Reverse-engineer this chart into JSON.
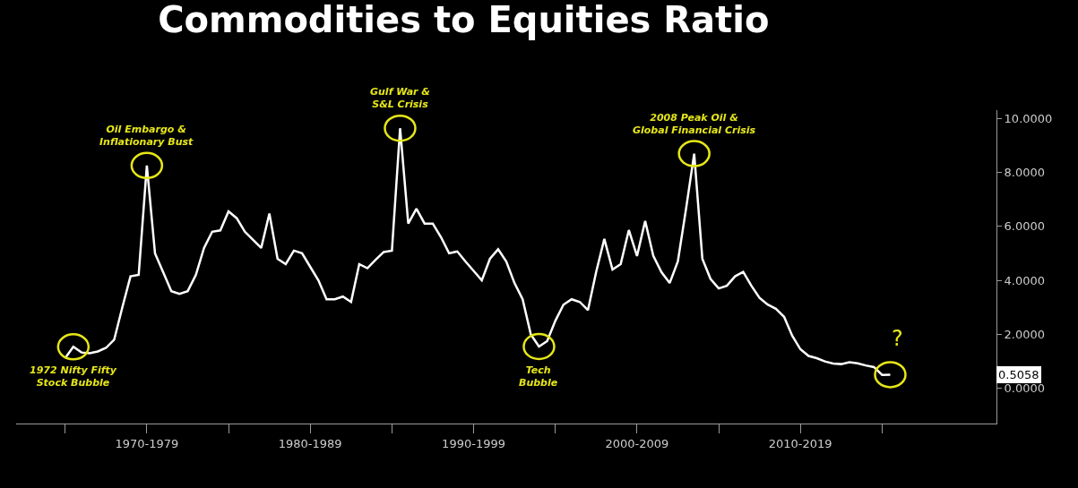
{
  "chart_data": {
    "type": "line",
    "title": "Commodities to Equities Ratio",
    "categories": [
      null,
      null,
      null,
      null,
      null,
      null,
      null,
      null,
      null,
      null,
      "1970-1979",
      null,
      null,
      null,
      null,
      null,
      null,
      null,
      null,
      null,
      null,
      null,
      null,
      null,
      null,
      null,
      null,
      null,
      null,
      null,
      "1980-1989",
      null,
      null,
      null,
      null,
      null,
      null,
      null,
      null,
      null,
      null,
      null,
      null,
      null,
      null,
      null,
      null,
      null,
      null,
      null,
      "1990-1999",
      null,
      null,
      null,
      null,
      null,
      null,
      null,
      null,
      null,
      null,
      null,
      null,
      null,
      null,
      null,
      null,
      null,
      null,
      null,
      "2000-2009",
      null,
      null,
      null,
      null,
      null,
      null,
      null,
      null,
      null,
      null,
      null,
      null,
      null,
      null,
      null,
      null,
      null,
      null,
      null,
      "2010-2019",
      null,
      null,
      null,
      null,
      null,
      null,
      null,
      null,
      null,
      null,
      null
    ],
    "series": [
      {
        "color": "#ffffff",
        "values": [
          1.12,
          1.54,
          1.33,
          1.3,
          1.37,
          1.5,
          1.8,
          3.0,
          4.15,
          4.2,
          8.25,
          5.0,
          4.3,
          3.6,
          3.5,
          3.6,
          4.2,
          5.2,
          5.8,
          5.85,
          6.55,
          6.3,
          5.8,
          5.5,
          5.2,
          6.47,
          4.8,
          4.6,
          5.1,
          5.0,
          4.5,
          4.0,
          3.3,
          3.3,
          3.4,
          3.2,
          4.6,
          4.45,
          4.76,
          5.05,
          5.1,
          9.63,
          6.1,
          6.65,
          6.1,
          6.1,
          5.6,
          5.0,
          5.07,
          4.7,
          4.35,
          4.0,
          4.8,
          5.15,
          4.7,
          3.9,
          3.3,
          2.0,
          1.55,
          1.75,
          2.5,
          3.1,
          3.3,
          3.2,
          2.9,
          4.31,
          5.53,
          4.4,
          4.6,
          5.86,
          4.9,
          6.2,
          4.9,
          4.3,
          3.9,
          4.7,
          6.64,
          8.69,
          4.8,
          4.05,
          3.7,
          3.8,
          4.15,
          4.31,
          3.8,
          3.35,
          3.1,
          2.95,
          2.65,
          1.95,
          1.45,
          1.2,
          1.12,
          1.0,
          0.92,
          0.9,
          0.97,
          0.93,
          0.85,
          0.79,
          0.5,
          0.51
        ]
      }
    ],
    "ylim": [
      -1.3,
      10.3
    ],
    "yticks": [
      {
        "value": 0,
        "label": "0.0000"
      },
      {
        "value": 2,
        "label": "2.0000"
      },
      {
        "value": 4,
        "label": "4.0000"
      },
      {
        "value": 6,
        "label": "6.0000"
      },
      {
        "value": 8,
        "label": "8.0000"
      },
      {
        "value": 10,
        "label": "10.0000"
      }
    ],
    "annotations": [
      {
        "text": "1972 Nifty Fifty\nStock Bubble",
        "y": 1.54
      },
      {
        "text": "Oil Embargo &\nInflationary Bust",
        "y": 8.25
      },
      {
        "text": "Gulf War &\nS&L Crisis",
        "y": 9.63
      },
      {
        "text": "Tech\nBubble",
        "y": 1.55
      },
      {
        "text": "2008 Peak Oil &\nGlobal Financial Crisis",
        "y": 8.69
      },
      "?",
      "0.5058"
    ],
    "grid": false,
    "legend": false,
    "marker": "none",
    "line_style": "solid"
  }
}
